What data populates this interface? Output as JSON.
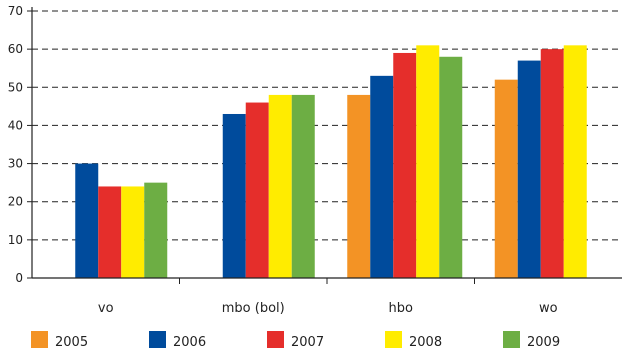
{
  "chart_data": {
    "type": "bar",
    "title": "",
    "xlabel": "",
    "ylabel": "",
    "categories": [
      "vo",
      "mbo (bol)",
      "hbo",
      "wo"
    ],
    "y_ticks": [
      "0",
      "10",
      "20",
      "30",
      "40",
      "50",
      "60",
      "70"
    ],
    "ylim": [
      0,
      70
    ],
    "grid": "horizontal dashed",
    "legend_position": "bottom",
    "series": [
      {
        "name": "2005",
        "color": "#F39325",
        "values": [
          null,
          null,
          48,
          52
        ]
      },
      {
        "name": "2006",
        "color": "#004B9C",
        "values": [
          30,
          43,
          53,
          57
        ]
      },
      {
        "name": "2007",
        "color": "#E52E2B",
        "values": [
          24,
          46,
          59,
          60
        ]
      },
      {
        "name": "2008",
        "color": "#FFEC00",
        "values": [
          24,
          48,
          61,
          61
        ]
      },
      {
        "name": "2009",
        "color": "#6DAE44",
        "values": [
          25,
          48,
          58,
          null
        ]
      }
    ]
  }
}
